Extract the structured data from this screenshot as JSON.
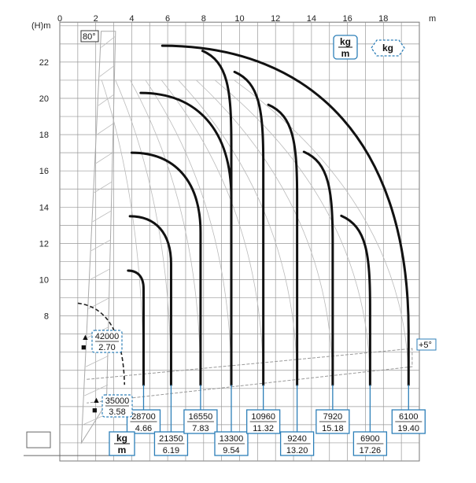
{
  "chart_data": {
    "type": "line",
    "xlabel": "m",
    "ylabel": "(H)m",
    "xlim": [
      0,
      20
    ],
    "ylim": [
      0,
      24
    ],
    "x_ticks": [
      "0",
      "2",
      "4",
      "6",
      "8",
      "10",
      "12",
      "14",
      "16",
      "18"
    ],
    "y_ticks": [
      "8",
      "10",
      "12",
      "14",
      "16",
      "18",
      "20",
      "22"
    ],
    "boom_angle_label": "80°",
    "jib_angle_label": "+5°",
    "unit_box_kgm": [
      "kg",
      "m"
    ],
    "unit_box_kg": "kg",
    "bottom_unit": [
      "kg",
      "m"
    ],
    "near_loads": [
      {
        "marker": "▲",
        "load": "42000",
        "reach": "2.70"
      },
      {
        "marker": "■",
        "load": "35000",
        "reach": "3.58"
      }
    ],
    "load_points": [
      {
        "load": "28700",
        "reach": "4.66",
        "x": 4.66
      },
      {
        "load": "21350",
        "reach": "6.19",
        "x": 6.19
      },
      {
        "load": "16550",
        "reach": "7.83",
        "x": 7.83
      },
      {
        "load": "13300",
        "reach": "9.54",
        "x": 9.54
      },
      {
        "load": "10960",
        "reach": "11.32",
        "x": 11.32
      },
      {
        "load": "9240",
        "reach": "13.20",
        "x": 13.2
      },
      {
        "load": "7920",
        "reach": "15.18",
        "x": 15.18
      },
      {
        "load": "6900",
        "reach": "17.26",
        "x": 17.26
      },
      {
        "load": "6100",
        "reach": "19.40",
        "x": 19.4
      }
    ],
    "envelopes": [
      {
        "start": [
          3.8,
          10.5
        ],
        "end_x": 4.66
      },
      {
        "start": [
          3.9,
          13.5
        ],
        "end_x": 6.19
      },
      {
        "start": [
          4.0,
          17.0
        ],
        "end_x": 7.83
      },
      {
        "start": [
          4.5,
          20.3
        ],
        "end_x": 9.54
      },
      {
        "start": [
          5.7,
          22.9
        ],
        "end_x": 19.4
      }
    ]
  }
}
